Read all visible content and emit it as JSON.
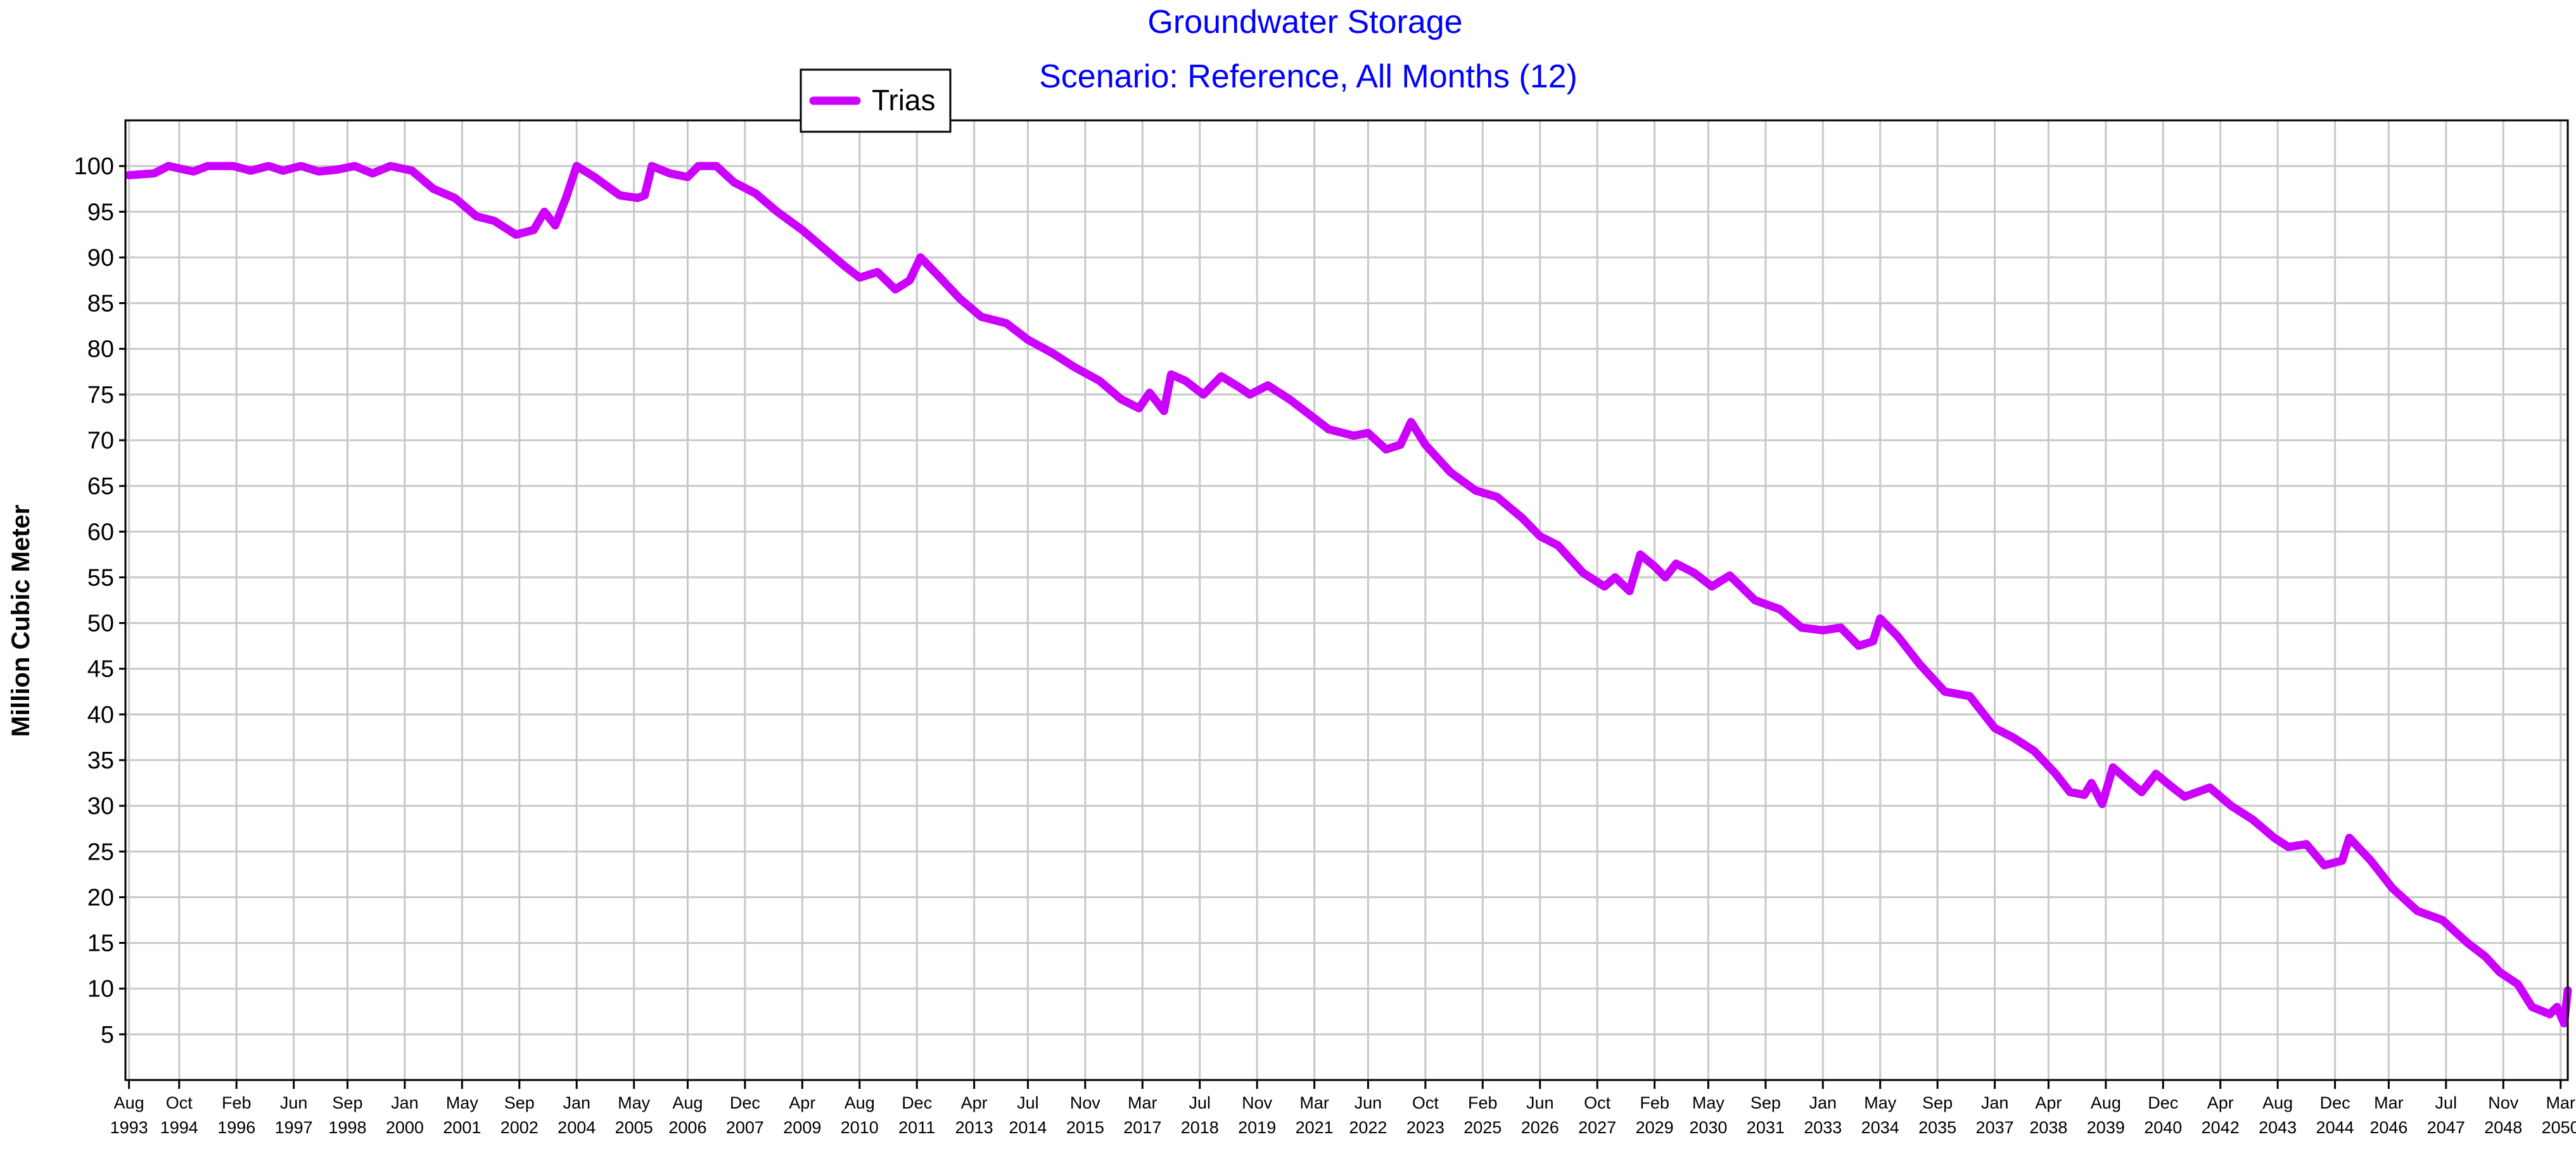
{
  "chart_data": {
    "type": "line",
    "title": "Groundwater Storage",
    "subtitle": "Scenario: Reference,  All Months (12)",
    "xlabel": "",
    "ylabel": "Million Cubic Meter",
    "ylim": [
      0,
      105
    ],
    "yticks": [
      5,
      10,
      15,
      20,
      25,
      30,
      35,
      40,
      45,
      50,
      55,
      60,
      65,
      70,
      75,
      80,
      85,
      90,
      95,
      100
    ],
    "xlim": [
      "1993-07",
      "2050-05"
    ],
    "x_tick_labels": [
      {
        "date": "1993-08",
        "month": "Aug",
        "year": "1993"
      },
      {
        "date": "1994-10",
        "month": "Oct",
        "year": "1994"
      },
      {
        "date": "1996-02",
        "month": "Feb",
        "year": "1996"
      },
      {
        "date": "1997-06",
        "month": "Jun",
        "year": "1997"
      },
      {
        "date": "1998-09",
        "month": "Sep",
        "year": "1998"
      },
      {
        "date": "2000-01",
        "month": "Jan",
        "year": "2000"
      },
      {
        "date": "2001-05",
        "month": "May",
        "year": "2001"
      },
      {
        "date": "2002-09",
        "month": "Sep",
        "year": "2002"
      },
      {
        "date": "2004-01",
        "month": "Jan",
        "year": "2004"
      },
      {
        "date": "2005-05",
        "month": "May",
        "year": "2005"
      },
      {
        "date": "2006-08",
        "month": "Aug",
        "year": "2006"
      },
      {
        "date": "2007-12",
        "month": "Dec",
        "year": "2007"
      },
      {
        "date": "2009-04",
        "month": "Apr",
        "year": "2009"
      },
      {
        "date": "2010-08",
        "month": "Aug",
        "year": "2010"
      },
      {
        "date": "2011-12",
        "month": "Dec",
        "year": "2011"
      },
      {
        "date": "2013-04",
        "month": "Apr",
        "year": "2013"
      },
      {
        "date": "2014-07",
        "month": "Jul",
        "year": "2014"
      },
      {
        "date": "2015-11",
        "month": "Nov",
        "year": "2015"
      },
      {
        "date": "2017-03",
        "month": "Mar",
        "year": "2017"
      },
      {
        "date": "2018-07",
        "month": "Jul",
        "year": "2018"
      },
      {
        "date": "2019-11",
        "month": "Nov",
        "year": "2019"
      },
      {
        "date": "2021-03",
        "month": "Mar",
        "year": "2021"
      },
      {
        "date": "2022-06",
        "month": "Jun",
        "year": "2022"
      },
      {
        "date": "2023-10",
        "month": "Oct",
        "year": "2023"
      },
      {
        "date": "2025-02",
        "month": "Feb",
        "year": "2025"
      },
      {
        "date": "2026-06",
        "month": "Jun",
        "year": "2026"
      },
      {
        "date": "2027-10",
        "month": "Oct",
        "year": "2027"
      },
      {
        "date": "2029-02",
        "month": "Feb",
        "year": "2029"
      },
      {
        "date": "2030-05",
        "month": "May",
        "year": "2030"
      },
      {
        "date": "2031-09",
        "month": "Sep",
        "year": "2031"
      },
      {
        "date": "2033-01",
        "month": "Jan",
        "year": "2033"
      },
      {
        "date": "2034-05",
        "month": "May",
        "year": "2034"
      },
      {
        "date": "2035-09",
        "month": "Sep",
        "year": "2035"
      },
      {
        "date": "2037-01",
        "month": "Jan",
        "year": "2037"
      },
      {
        "date": "2038-04",
        "month": "Apr",
        "year": "2038"
      },
      {
        "date": "2039-08",
        "month": "Aug",
        "year": "2039"
      },
      {
        "date": "2040-12",
        "month": "Dec",
        "year": "2040"
      },
      {
        "date": "2042-04",
        "month": "Apr",
        "year": "2042"
      },
      {
        "date": "2043-08",
        "month": "Aug",
        "year": "2043"
      },
      {
        "date": "2044-12",
        "month": "Dec",
        "year": "2044"
      },
      {
        "date": "2046-03",
        "month": "Mar",
        "year": "2046"
      },
      {
        "date": "2047-07",
        "month": "Jul",
        "year": "2047"
      },
      {
        "date": "2048-11",
        "month": "Nov",
        "year": "2048"
      },
      {
        "date": "2050-03",
        "month": "Mar",
        "year": "2050"
      }
    ],
    "grid": true,
    "legend": {
      "position": "top-left",
      "entries": [
        "Trias"
      ]
    },
    "series": [
      {
        "name": "Trias",
        "color": "#cc00ff",
        "points": [
          [
            "1993-08",
            99.0
          ],
          [
            "1994-03",
            99.2
          ],
          [
            "1994-07",
            100.0
          ],
          [
            "1995-02",
            99.4
          ],
          [
            "1995-06",
            100.0
          ],
          [
            "1996-01",
            100.0
          ],
          [
            "1996-06",
            99.5
          ],
          [
            "1996-11",
            100.0
          ],
          [
            "1997-03",
            99.5
          ],
          [
            "1997-08",
            100.0
          ],
          [
            "1998-01",
            99.4
          ],
          [
            "1998-06",
            99.6
          ],
          [
            "1998-11",
            100.0
          ],
          [
            "1999-04",
            99.2
          ],
          [
            "1999-09",
            100.0
          ],
          [
            "2000-03",
            99.5
          ],
          [
            "2000-09",
            97.5
          ],
          [
            "2001-03",
            96.5
          ],
          [
            "2001-09",
            94.5
          ],
          [
            "2002-02",
            94.0
          ],
          [
            "2002-08",
            92.5
          ],
          [
            "2003-01",
            93.0
          ],
          [
            "2003-04",
            95.0
          ],
          [
            "2003-07",
            93.5
          ],
          [
            "2003-10",
            96.5
          ],
          [
            "2004-01",
            100.0
          ],
          [
            "2004-06",
            98.8
          ],
          [
            "2005-01",
            96.8
          ],
          [
            "2005-06",
            96.5
          ],
          [
            "2005-08",
            96.8
          ],
          [
            "2005-10",
            100.0
          ],
          [
            "2006-03",
            99.2
          ],
          [
            "2006-08",
            98.8
          ],
          [
            "2006-11",
            100.0
          ],
          [
            "2007-04",
            100.0
          ],
          [
            "2007-09",
            98.2
          ],
          [
            "2008-03",
            97.0
          ],
          [
            "2008-09",
            95.0
          ],
          [
            "2009-04",
            93.0
          ],
          [
            "2009-10",
            91.0
          ],
          [
            "2010-04",
            89.0
          ],
          [
            "2010-08",
            87.8
          ],
          [
            "2011-01",
            88.4
          ],
          [
            "2011-06",
            86.5
          ],
          [
            "2011-10",
            87.5
          ],
          [
            "2012-01",
            90.0
          ],
          [
            "2012-06",
            88.0
          ],
          [
            "2012-12",
            85.5
          ],
          [
            "2013-06",
            83.5
          ],
          [
            "2014-01",
            82.8
          ],
          [
            "2014-07",
            81.0
          ],
          [
            "2015-02",
            79.5
          ],
          [
            "2015-08",
            78.0
          ],
          [
            "2016-03",
            76.5
          ],
          [
            "2016-09",
            74.5
          ],
          [
            "2017-02",
            73.5
          ],
          [
            "2017-05",
            75.2
          ],
          [
            "2017-09",
            73.2
          ],
          [
            "2017-11",
            77.2
          ],
          [
            "2018-03",
            76.5
          ],
          [
            "2018-08",
            75.0
          ],
          [
            "2019-01",
            77.0
          ],
          [
            "2019-06",
            75.8
          ],
          [
            "2019-09",
            75.0
          ],
          [
            "2020-02",
            76.0
          ],
          [
            "2020-08",
            74.5
          ],
          [
            "2021-01",
            73.0
          ],
          [
            "2021-07",
            71.2
          ],
          [
            "2022-02",
            70.5
          ],
          [
            "2022-06",
            70.8
          ],
          [
            "2022-11",
            69.0
          ],
          [
            "2023-03",
            69.5
          ],
          [
            "2023-06",
            72.0
          ],
          [
            "2023-10",
            69.5
          ],
          [
            "2024-05",
            66.5
          ],
          [
            "2024-12",
            64.5
          ],
          [
            "2025-06",
            63.8
          ],
          [
            "2026-01",
            61.5
          ],
          [
            "2026-06",
            59.5
          ],
          [
            "2026-11",
            58.5
          ],
          [
            "2027-06",
            55.5
          ],
          [
            "2027-12",
            54.0
          ],
          [
            "2028-03",
            55.0
          ],
          [
            "2028-07",
            53.5
          ],
          [
            "2028-10",
            57.5
          ],
          [
            "2029-02",
            56.2
          ],
          [
            "2029-05",
            55.0
          ],
          [
            "2029-08",
            56.5
          ],
          [
            "2030-01",
            55.5
          ],
          [
            "2030-06",
            54.0
          ],
          [
            "2030-11",
            55.2
          ],
          [
            "2031-06",
            52.5
          ],
          [
            "2032-01",
            51.5
          ],
          [
            "2032-07",
            49.5
          ],
          [
            "2033-01",
            49.2
          ],
          [
            "2033-06",
            49.5
          ],
          [
            "2033-11",
            47.5
          ],
          [
            "2034-03",
            48.0
          ],
          [
            "2034-05",
            50.5
          ],
          [
            "2034-10",
            48.5
          ],
          [
            "2035-04",
            45.5
          ],
          [
            "2035-11",
            42.5
          ],
          [
            "2036-06",
            42.0
          ],
          [
            "2037-01",
            38.5
          ],
          [
            "2037-06",
            37.5
          ],
          [
            "2037-12",
            36.0
          ],
          [
            "2038-06",
            33.5
          ],
          [
            "2038-10",
            31.5
          ],
          [
            "2039-02",
            31.2
          ],
          [
            "2039-04",
            32.5
          ],
          [
            "2039-07",
            30.2
          ],
          [
            "2039-10",
            34.2
          ],
          [
            "2040-03",
            32.5
          ],
          [
            "2040-06",
            31.5
          ],
          [
            "2040-10",
            33.5
          ],
          [
            "2041-02",
            32.2
          ],
          [
            "2041-06",
            31.0
          ],
          [
            "2042-01",
            32.0
          ],
          [
            "2042-07",
            30.0
          ],
          [
            "2043-01",
            28.5
          ],
          [
            "2043-07",
            26.5
          ],
          [
            "2043-11",
            25.5
          ],
          [
            "2044-04",
            25.8
          ],
          [
            "2044-09",
            23.5
          ],
          [
            "2045-02",
            24.0
          ],
          [
            "2045-04",
            26.5
          ],
          [
            "2045-10",
            24.0
          ],
          [
            "2046-04",
            21.0
          ],
          [
            "2046-11",
            18.5
          ],
          [
            "2047-06",
            17.5
          ],
          [
            "2048-01",
            15.0
          ],
          [
            "2048-06",
            13.5
          ],
          [
            "2048-10",
            11.8
          ],
          [
            "2049-03",
            10.5
          ],
          [
            "2049-07",
            8.0
          ],
          [
            "2049-12",
            7.2
          ],
          [
            "2050-02",
            8.0
          ],
          [
            "2050-04",
            6.2
          ],
          [
            "2050-05",
            9.8
          ]
        ]
      }
    ]
  }
}
